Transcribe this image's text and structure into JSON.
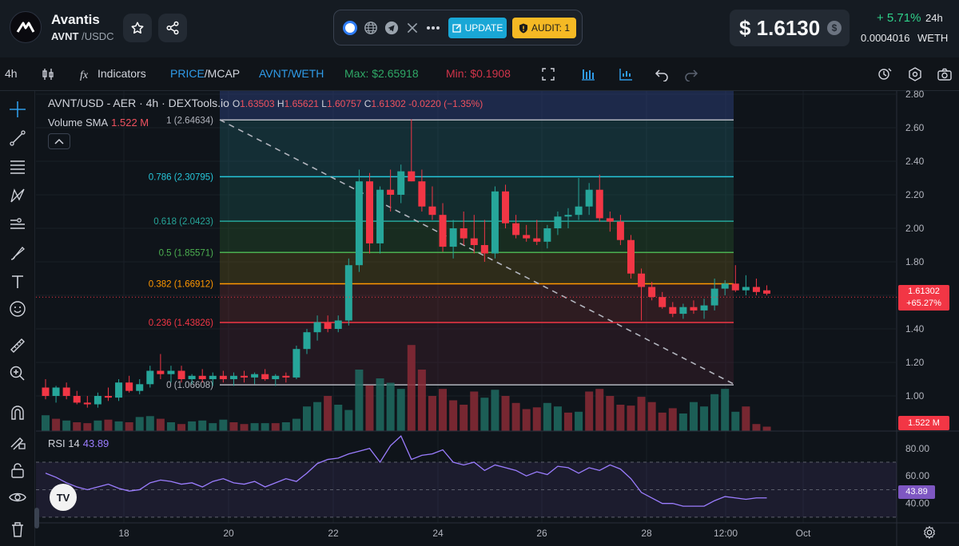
{
  "header": {
    "token_name": "Avantis",
    "base_symbol": "AVNT",
    "quote_symbol": "USDC",
    "pair_separator": "/",
    "icons": [
      "star-icon",
      "share-icon",
      "globe-icon",
      "telegram-icon",
      "x-icon",
      "more-icon"
    ],
    "update_label": "UPDATE",
    "audit_label": "AUDIT: 1",
    "price": "$ 1.6130",
    "change": "+ 5.71%",
    "change_period": "24h",
    "weth_price": "0.0004016",
    "weth_label": "WETH",
    "colors": {
      "positive": "#2fd18a",
      "update": "#19a7d6",
      "audit": "#f5b924"
    }
  },
  "toolbar": {
    "interval": "4h",
    "indicators_label": "Indicators",
    "price_label": "PRICE",
    "mcap_label": "/MCAP",
    "pair_toggle": "AVNT/WETH",
    "max_label": "Max: $2.65918",
    "min_label": "Min: $0.1908",
    "icons": [
      "candles-icon",
      "indicators-icon",
      "fullscreen-icon",
      "bars-icon",
      "compare-icon",
      "undo-icon",
      "redo-icon",
      "replay-icon",
      "hexagon-icon",
      "camera-icon"
    ]
  },
  "left_tools": [
    "crosshair-icon",
    "trendline-icon",
    "fib-icon",
    "pattern-icon",
    "prediction-icon",
    "brush-icon",
    "text-icon",
    "emoji-icon",
    "ruler-icon",
    "zoom-in-icon",
    "magnet-icon",
    "lock-drawing-icon",
    "lock-icon",
    "eye-icon",
    "trash-icon"
  ],
  "legend": {
    "title": "AVNT/USD - AER · 4h · DEXTools.io",
    "o_label": "O",
    "o_val": "1.63503",
    "h_label": "H",
    "h_val": "1.65621",
    "l_label": "L",
    "l_val": "1.60757",
    "c_label": "C",
    "c_val": "1.61302",
    "chg": "-0.0220 (−1.35%)",
    "volume_label": "Volume SMA",
    "volume_val": "1.522 M"
  },
  "rsi": {
    "label": "RSI 14",
    "value": "43.89",
    "tag": "43.89"
  },
  "price_tag": {
    "line1": "1.61302",
    "line2": "+65.27%"
  },
  "volume_tag": "1.522 M",
  "chart_data": {
    "type": "candlestick",
    "interval": "4h",
    "y_ticks": [
      "2.80",
      "2.60",
      "2.40",
      "2.20",
      "2.00",
      "1.80",
      "1.60",
      "1.40",
      "1.20",
      "1.00"
    ],
    "ylim": [
      0.88,
      2.8
    ],
    "x_ticks": [
      "18",
      "20",
      "22",
      "24",
      "26",
      "28",
      "12:00",
      "Oct"
    ],
    "rsi_ticks": [
      "80.00",
      "60.00",
      "40.00"
    ],
    "fib_levels": [
      {
        "label": "1 (2.64634)",
        "value": 2.64634,
        "color": "#b2b5be"
      },
      {
        "label": "0.786 (2.30795)",
        "value": 2.30795,
        "color": "#26c6da"
      },
      {
        "label": "0.618 (2.0423)",
        "value": 2.0423,
        "color": "#26a69a"
      },
      {
        "label": "0.5 (1.85571)",
        "value": 1.85571,
        "color": "#4caf50"
      },
      {
        "label": "0.382 (1.66912)",
        "value": 1.66912,
        "color": "#ff9800"
      },
      {
        "label": "0.236 (1.43826)",
        "value": 1.43826,
        "color": "#f23645"
      },
      {
        "label": "0 (1.06608)",
        "value": 1.06608,
        "color": "#b2b5be"
      }
    ],
    "candles": [
      [
        1.05,
        1.1,
        0.98,
        1.0
      ],
      [
        1.0,
        1.06,
        0.96,
        1.05
      ],
      [
        1.05,
        1.08,
        0.98,
        1.0
      ],
      [
        1.0,
        1.03,
        0.95,
        0.96
      ],
      [
        0.96,
        1.0,
        0.93,
        0.95
      ],
      [
        0.95,
        1.02,
        0.93,
        1.0
      ],
      [
        1.0,
        1.05,
        0.97,
        0.99
      ],
      [
        0.99,
        1.1,
        0.97,
        1.08
      ],
      [
        1.08,
        1.12,
        1.02,
        1.03
      ],
      [
        1.03,
        1.1,
        1.01,
        1.07
      ],
      [
        1.07,
        1.18,
        1.05,
        1.15
      ],
      [
        1.15,
        1.25,
        1.1,
        1.13
      ],
      [
        1.13,
        1.18,
        1.08,
        1.15
      ],
      [
        1.15,
        1.18,
        1.08,
        1.1
      ],
      [
        1.1,
        1.13,
        1.07,
        1.12
      ],
      [
        1.12,
        1.16,
        1.08,
        1.1
      ],
      [
        1.1,
        1.14,
        1.06,
        1.12
      ],
      [
        1.12,
        1.15,
        1.08,
        1.1
      ],
      [
        1.1,
        1.14,
        1.06,
        1.12
      ],
      [
        1.12,
        1.15,
        1.08,
        1.11
      ],
      [
        1.11,
        1.14,
        1.07,
        1.13
      ],
      [
        1.13,
        1.16,
        1.09,
        1.1
      ],
      [
        1.1,
        1.13,
        1.06,
        1.12
      ],
      [
        1.12,
        1.14,
        1.08,
        1.11
      ],
      [
        1.11,
        1.3,
        1.1,
        1.28
      ],
      [
        1.28,
        1.4,
        1.25,
        1.38
      ],
      [
        1.38,
        1.48,
        1.33,
        1.44
      ],
      [
        1.44,
        1.48,
        1.38,
        1.4
      ],
      [
        1.4,
        1.48,
        1.38,
        1.45
      ],
      [
        1.45,
        1.82,
        1.42,
        1.78
      ],
      [
        1.78,
        2.35,
        1.74,
        2.28
      ],
      [
        2.28,
        2.33,
        1.85,
        1.91
      ],
      [
        1.91,
        2.25,
        1.85,
        2.23
      ],
      [
        2.23,
        2.35,
        2.1,
        2.2
      ],
      [
        2.2,
        2.38,
        2.15,
        2.34
      ],
      [
        2.34,
        2.65,
        2.28,
        2.28
      ],
      [
        2.28,
        2.35,
        2.1,
        2.13
      ],
      [
        2.13,
        2.25,
        2.05,
        2.08
      ],
      [
        2.08,
        2.15,
        1.86,
        1.89
      ],
      [
        1.89,
        2.05,
        1.82,
        2.0
      ],
      [
        2.0,
        2.1,
        1.9,
        1.94
      ],
      [
        1.94,
        2.08,
        1.85,
        1.9
      ],
      [
        1.9,
        2.05,
        1.8,
        1.85
      ],
      [
        1.85,
        2.25,
        1.82,
        2.22
      ],
      [
        2.22,
        2.26,
        2.0,
        2.03
      ],
      [
        2.03,
        2.08,
        1.94,
        1.96
      ],
      [
        1.96,
        2.02,
        1.92,
        1.94
      ],
      [
        1.94,
        2.05,
        1.9,
        1.92
      ],
      [
        1.92,
        2.02,
        1.88,
        2.0
      ],
      [
        2.0,
        2.1,
        1.96,
        2.07
      ],
      [
        2.07,
        2.12,
        2.0,
        2.08
      ],
      [
        2.08,
        2.3,
        2.05,
        2.13
      ],
      [
        2.13,
        2.27,
        2.08,
        2.23
      ],
      [
        2.23,
        2.32,
        2.04,
        2.06
      ],
      [
        2.06,
        2.1,
        1.98,
        2.04
      ],
      [
        2.04,
        2.08,
        1.9,
        1.93
      ],
      [
        1.93,
        1.96,
        1.7,
        1.73
      ],
      [
        1.73,
        1.76,
        1.45,
        1.65
      ],
      [
        1.65,
        1.68,
        1.57,
        1.59
      ],
      [
        1.59,
        1.62,
        1.52,
        1.53
      ],
      [
        1.53,
        1.56,
        1.47,
        1.49
      ],
      [
        1.49,
        1.55,
        1.46,
        1.53
      ],
      [
        1.53,
        1.57,
        1.49,
        1.51
      ],
      [
        1.51,
        1.58,
        1.46,
        1.54
      ],
      [
        1.54,
        1.7,
        1.51,
        1.64
      ],
      [
        1.64,
        1.69,
        1.6,
        1.67
      ],
      [
        1.67,
        1.78,
        1.62,
        1.63
      ],
      [
        1.63,
        1.72,
        1.6,
        1.65
      ],
      [
        1.65,
        1.7,
        1.6,
        1.62
      ],
      [
        1.63,
        1.66,
        1.6,
        1.61
      ]
    ],
    "volumes": [
      [
        0.18,
        0
      ],
      [
        0.14,
        1
      ],
      [
        0.12,
        0
      ],
      [
        0.1,
        1
      ],
      [
        0.09,
        1
      ],
      [
        0.12,
        0
      ],
      [
        0.13,
        1
      ],
      [
        0.11,
        0
      ],
      [
        0.1,
        1
      ],
      [
        0.16,
        0
      ],
      [
        0.17,
        0
      ],
      [
        0.14,
        1
      ],
      [
        0.1,
        0
      ],
      [
        0.08,
        1
      ],
      [
        0.11,
        0
      ],
      [
        0.12,
        0
      ],
      [
        0.09,
        0
      ],
      [
        0.13,
        0
      ],
      [
        0.1,
        1
      ],
      [
        0.08,
        1
      ],
      [
        0.09,
        0
      ],
      [
        0.09,
        0
      ],
      [
        0.09,
        1
      ],
      [
        0.1,
        0
      ],
      [
        0.14,
        0
      ],
      [
        0.28,
        0
      ],
      [
        0.33,
        0
      ],
      [
        0.4,
        1
      ],
      [
        0.3,
        0
      ],
      [
        0.24,
        0
      ],
      [
        0.7,
        0
      ],
      [
        0.52,
        1
      ],
      [
        0.6,
        0
      ],
      [
        0.55,
        0
      ],
      [
        0.48,
        0
      ],
      [
        0.98,
        1
      ],
      [
        0.7,
        1
      ],
      [
        0.4,
        1
      ],
      [
        0.48,
        1
      ],
      [
        0.35,
        1
      ],
      [
        0.3,
        1
      ],
      [
        0.45,
        1
      ],
      [
        0.38,
        0
      ],
      [
        0.47,
        0
      ],
      [
        0.4,
        1
      ],
      [
        0.32,
        1
      ],
      [
        0.25,
        1
      ],
      [
        0.27,
        1
      ],
      [
        0.32,
        0
      ],
      [
        0.28,
        0
      ],
      [
        0.21,
        1
      ],
      [
        0.22,
        0
      ],
      [
        0.45,
        1
      ],
      [
        0.48,
        1
      ],
      [
        0.4,
        1
      ],
      [
        0.3,
        1
      ],
      [
        0.29,
        1
      ],
      [
        0.39,
        1
      ],
      [
        0.33,
        1
      ],
      [
        0.21,
        1
      ],
      [
        0.26,
        1
      ],
      [
        0.2,
        0
      ],
      [
        0.33,
        0
      ],
      [
        0.28,
        0
      ],
      [
        0.42,
        0
      ],
      [
        0.48,
        0
      ],
      [
        0.22,
        0
      ],
      [
        0.28,
        1
      ],
      [
        0.08,
        1
      ],
      [
        0.05,
        1
      ]
    ],
    "rsi_values": [
      62,
      59,
      55,
      52,
      50,
      52,
      54,
      51,
      49,
      50,
      55,
      57,
      56,
      54,
      55,
      52,
      56,
      58,
      55,
      54,
      56,
      52,
      55,
      58,
      56,
      62,
      69,
      72,
      73,
      76,
      78,
      80,
      70,
      82,
      89,
      72,
      75,
      76,
      79,
      70,
      68,
      70,
      64,
      68,
      66,
      64,
      60,
      63,
      61,
      67,
      66,
      62,
      66,
      64,
      68,
      65,
      58,
      48,
      44,
      40,
      40,
      38,
      38,
      38,
      42,
      45,
      44,
      43,
      44,
      44
    ]
  }
}
